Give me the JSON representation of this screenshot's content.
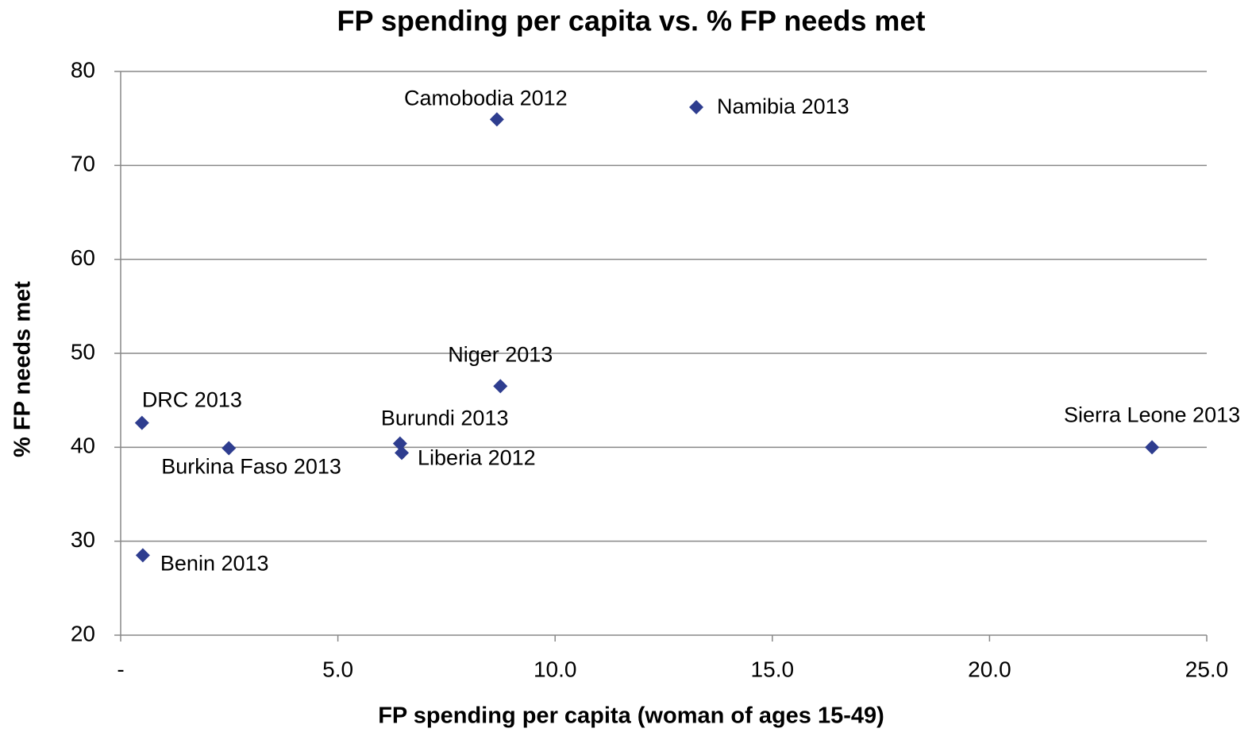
{
  "chart_data": {
    "type": "scatter",
    "title": "FP spending per capita vs. % FP needs met",
    "x_label": "FP spending per capita (woman of ages 15-49)",
    "y_label": "% FP needs met",
    "color": "#2e3d8f",
    "labels": [
      "DRC 2013",
      "Burkina Faso 2013",
      "Benin 2013",
      "Burundi 2013",
      "Liberia 2012",
      "Niger 2013",
      "Camobodia 2012",
      "Namibia 2013",
      "Sierra Leone 2013"
    ],
    "x": [
      0.49,
      2.49,
      0.51,
      6.43,
      6.47,
      8.74,
      8.66,
      13.25,
      23.74
    ],
    "values": [
      42.6,
      39.9,
      28.5,
      40.4,
      39.4,
      46.5,
      74.9,
      76.2,
      40.0
    ],
    "xlim": [
      0,
      25
    ],
    "xticks": [
      {
        "value": 0,
        "label": "-"
      },
      {
        "value": 5,
        "label": "5.0"
      },
      {
        "value": 10,
        "label": "10.0"
      },
      {
        "value": 15,
        "label": "15.0"
      },
      {
        "value": 20,
        "label": "20.0"
      },
      {
        "value": 25,
        "label": "25.0"
      }
    ],
    "ylim": [
      20,
      80
    ],
    "yticks": [
      20,
      30,
      40,
      50,
      60,
      70,
      80
    ],
    "grid": true
  }
}
